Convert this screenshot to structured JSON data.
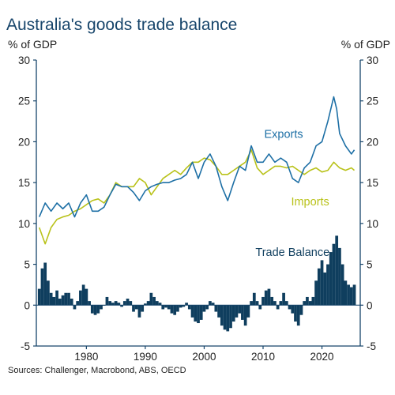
{
  "title": "Australia's goods trade balance",
  "unit_left": "% of GDP",
  "unit_right": "% of GDP",
  "source": "Sources: Challenger, Macrobond, ABS, OECD",
  "chart_data": {
    "type": "line",
    "title": "Australia's goods trade balance",
    "ylabel": "% of GDP",
    "ylim": [
      -5,
      30
    ],
    "yticks": [
      -5,
      0,
      5,
      10,
      15,
      20,
      25,
      30
    ],
    "xlim": [
      1971.5,
      2026.5
    ],
    "xticks": [
      1980,
      1990,
      2000,
      2010,
      2020
    ],
    "grid": false,
    "colors": {
      "exports": "#1d6fa5",
      "imports": "#b9c21a",
      "balance": "#0f3e5e",
      "axis": "#17456b"
    },
    "series": [
      {
        "name": "Exports",
        "type": "line",
        "x": [
          1972,
          1973,
          1974,
          1975,
          1976,
          1977,
          1978,
          1979,
          1980,
          1981,
          1982,
          1983,
          1984,
          1985,
          1986,
          1987,
          1988,
          1989,
          1990,
          1991,
          1992,
          1993,
          1994,
          1995,
          1996,
          1997,
          1998,
          1999,
          2000,
          2001,
          2002,
          2003,
          2004,
          2005,
          2006,
          2007,
          2008,
          2009,
          2010,
          2011,
          2012,
          2013,
          2014,
          2015,
          2016,
          2017,
          2018,
          2019,
          2020,
          2021,
          2022,
          2022.5,
          2023,
          2024,
          2025,
          2025.5
        ],
        "values": [
          10.8,
          12.5,
          11.5,
          12.5,
          11.8,
          12.5,
          10.8,
          12.5,
          13.5,
          11.5,
          11.5,
          12.0,
          13.5,
          14.8,
          14.5,
          14.5,
          13.8,
          12.8,
          14.0,
          14.5,
          14.8,
          15.0,
          15.0,
          15.3,
          15.5,
          16.0,
          17.5,
          15.5,
          17.5,
          18.5,
          17.0,
          14.5,
          12.8,
          15.0,
          17.0,
          16.5,
          19.5,
          17.5,
          17.5,
          18.5,
          17.5,
          18.0,
          17.5,
          15.5,
          15.0,
          16.8,
          17.5,
          19.5,
          20.0,
          22.5,
          25.5,
          24.0,
          21.0,
          19.5,
          18.5,
          19.0
        ]
      },
      {
        "name": "Imports",
        "type": "line",
        "x": [
          1972,
          1973,
          1974,
          1975,
          1976,
          1977,
          1978,
          1979,
          1980,
          1981,
          1982,
          1983,
          1984,
          1985,
          1986,
          1987,
          1988,
          1989,
          1990,
          1991,
          1992,
          1993,
          1994,
          1995,
          1996,
          1997,
          1998,
          1999,
          2000,
          2001,
          2002,
          2003,
          2004,
          2005,
          2006,
          2007,
          2008,
          2009,
          2010,
          2011,
          2012,
          2013,
          2014,
          2015,
          2016,
          2017,
          2018,
          2019,
          2020,
          2021,
          2022,
          2023,
          2024,
          2025,
          2025.5
        ],
        "values": [
          9.5,
          7.5,
          9.5,
          10.5,
          10.8,
          11.0,
          11.5,
          11.8,
          12.3,
          12.8,
          13.0,
          12.5,
          13.5,
          15.0,
          14.5,
          14.5,
          14.5,
          15.5,
          15.0,
          13.5,
          14.5,
          15.5,
          16.0,
          16.5,
          16.0,
          16.8,
          17.5,
          17.5,
          18.0,
          17.8,
          17.0,
          16.0,
          16.0,
          16.5,
          17.0,
          17.5,
          19.0,
          16.8,
          16.0,
          16.5,
          17.0,
          17.0,
          16.8,
          17.0,
          16.5,
          16.0,
          16.5,
          16.8,
          16.3,
          16.5,
          17.5,
          16.8,
          16.5,
          16.8,
          16.5
        ]
      },
      {
        "name": "Trade Balance",
        "type": "bar",
        "x": [
          1972,
          1972.5,
          1973,
          1973.5,
          1974,
          1974.5,
          1975,
          1975.5,
          1976,
          1976.5,
          1977,
          1977.5,
          1978,
          1978.5,
          1979,
          1979.5,
          1980,
          1980.5,
          1981,
          1981.5,
          1982,
          1982.5,
          1983,
          1983.5,
          1984,
          1984.5,
          1985,
          1985.5,
          1986,
          1986.5,
          1987,
          1987.5,
          1988,
          1988.5,
          1989,
          1989.5,
          1990,
          1990.5,
          1991,
          1991.5,
          1992,
          1992.5,
          1993,
          1993.5,
          1994,
          1994.5,
          1995,
          1995.5,
          1996,
          1996.5,
          1997,
          1997.5,
          1998,
          1998.5,
          1999,
          1999.5,
          2000,
          2000.5,
          2001,
          2001.5,
          2002,
          2002.5,
          2003,
          2003.5,
          2004,
          2004.5,
          2005,
          2005.5,
          2006,
          2006.5,
          2007,
          2007.5,
          2008,
          2008.5,
          2009,
          2009.5,
          2010,
          2010.5,
          2011,
          2011.5,
          2012,
          2012.5,
          2013,
          2013.5,
          2014,
          2014.5,
          2015,
          2015.5,
          2016,
          2016.5,
          2017,
          2017.5,
          2018,
          2018.5,
          2019,
          2019.5,
          2020,
          2020.5,
          2021,
          2021.5,
          2022,
          2022.5,
          2023,
          2023.5,
          2024,
          2024.5,
          2025,
          2025.5
        ],
        "values": [
          2.0,
          4.5,
          5.2,
          3.0,
          1.5,
          1.0,
          1.8,
          0.8,
          1.2,
          1.5,
          1.5,
          0.8,
          -0.5,
          0.5,
          1.8,
          2.5,
          2.0,
          0.5,
          -1.0,
          -1.2,
          -1.0,
          -0.5,
          0.0,
          1.0,
          0.5,
          0.3,
          0.5,
          0.3,
          -0.2,
          0.5,
          0.8,
          0.5,
          -0.8,
          -0.5,
          -1.5,
          -0.8,
          0.2,
          0.5,
          1.5,
          1.0,
          0.5,
          0.3,
          -0.5,
          -0.3,
          -0.5,
          -1.0,
          -1.2,
          -0.8,
          -0.3,
          -0.2,
          0.3,
          -0.5,
          -1.5,
          -2.0,
          -2.2,
          -1.8,
          -0.8,
          -0.5,
          0.5,
          0.3,
          -0.8,
          -1.5,
          -2.5,
          -3.0,
          -3.2,
          -2.8,
          -2.0,
          -1.5,
          -1.0,
          -1.8,
          -2.5,
          -1.5,
          0.5,
          1.5,
          0.5,
          -0.5,
          1.0,
          1.8,
          2.0,
          1.0,
          0.5,
          -0.5,
          0.5,
          1.5,
          0.5,
          -0.5,
          -1.0,
          -2.0,
          -2.5,
          -1.2,
          0.5,
          1.0,
          0.5,
          1.0,
          3.0,
          4.5,
          5.5,
          4.0,
          5.0,
          6.5,
          7.5,
          8.5,
          7.0,
          5.0,
          3.0,
          2.5,
          2.2,
          2.5
        ]
      }
    ],
    "annotations": [
      {
        "text": "Exports",
        "x": 2013.5,
        "y": 20.5
      },
      {
        "text": "Imports",
        "x": 2018,
        "y": 12.2
      },
      {
        "text": "Trade Balance",
        "x": 2015,
        "y": 6.0
      }
    ]
  }
}
